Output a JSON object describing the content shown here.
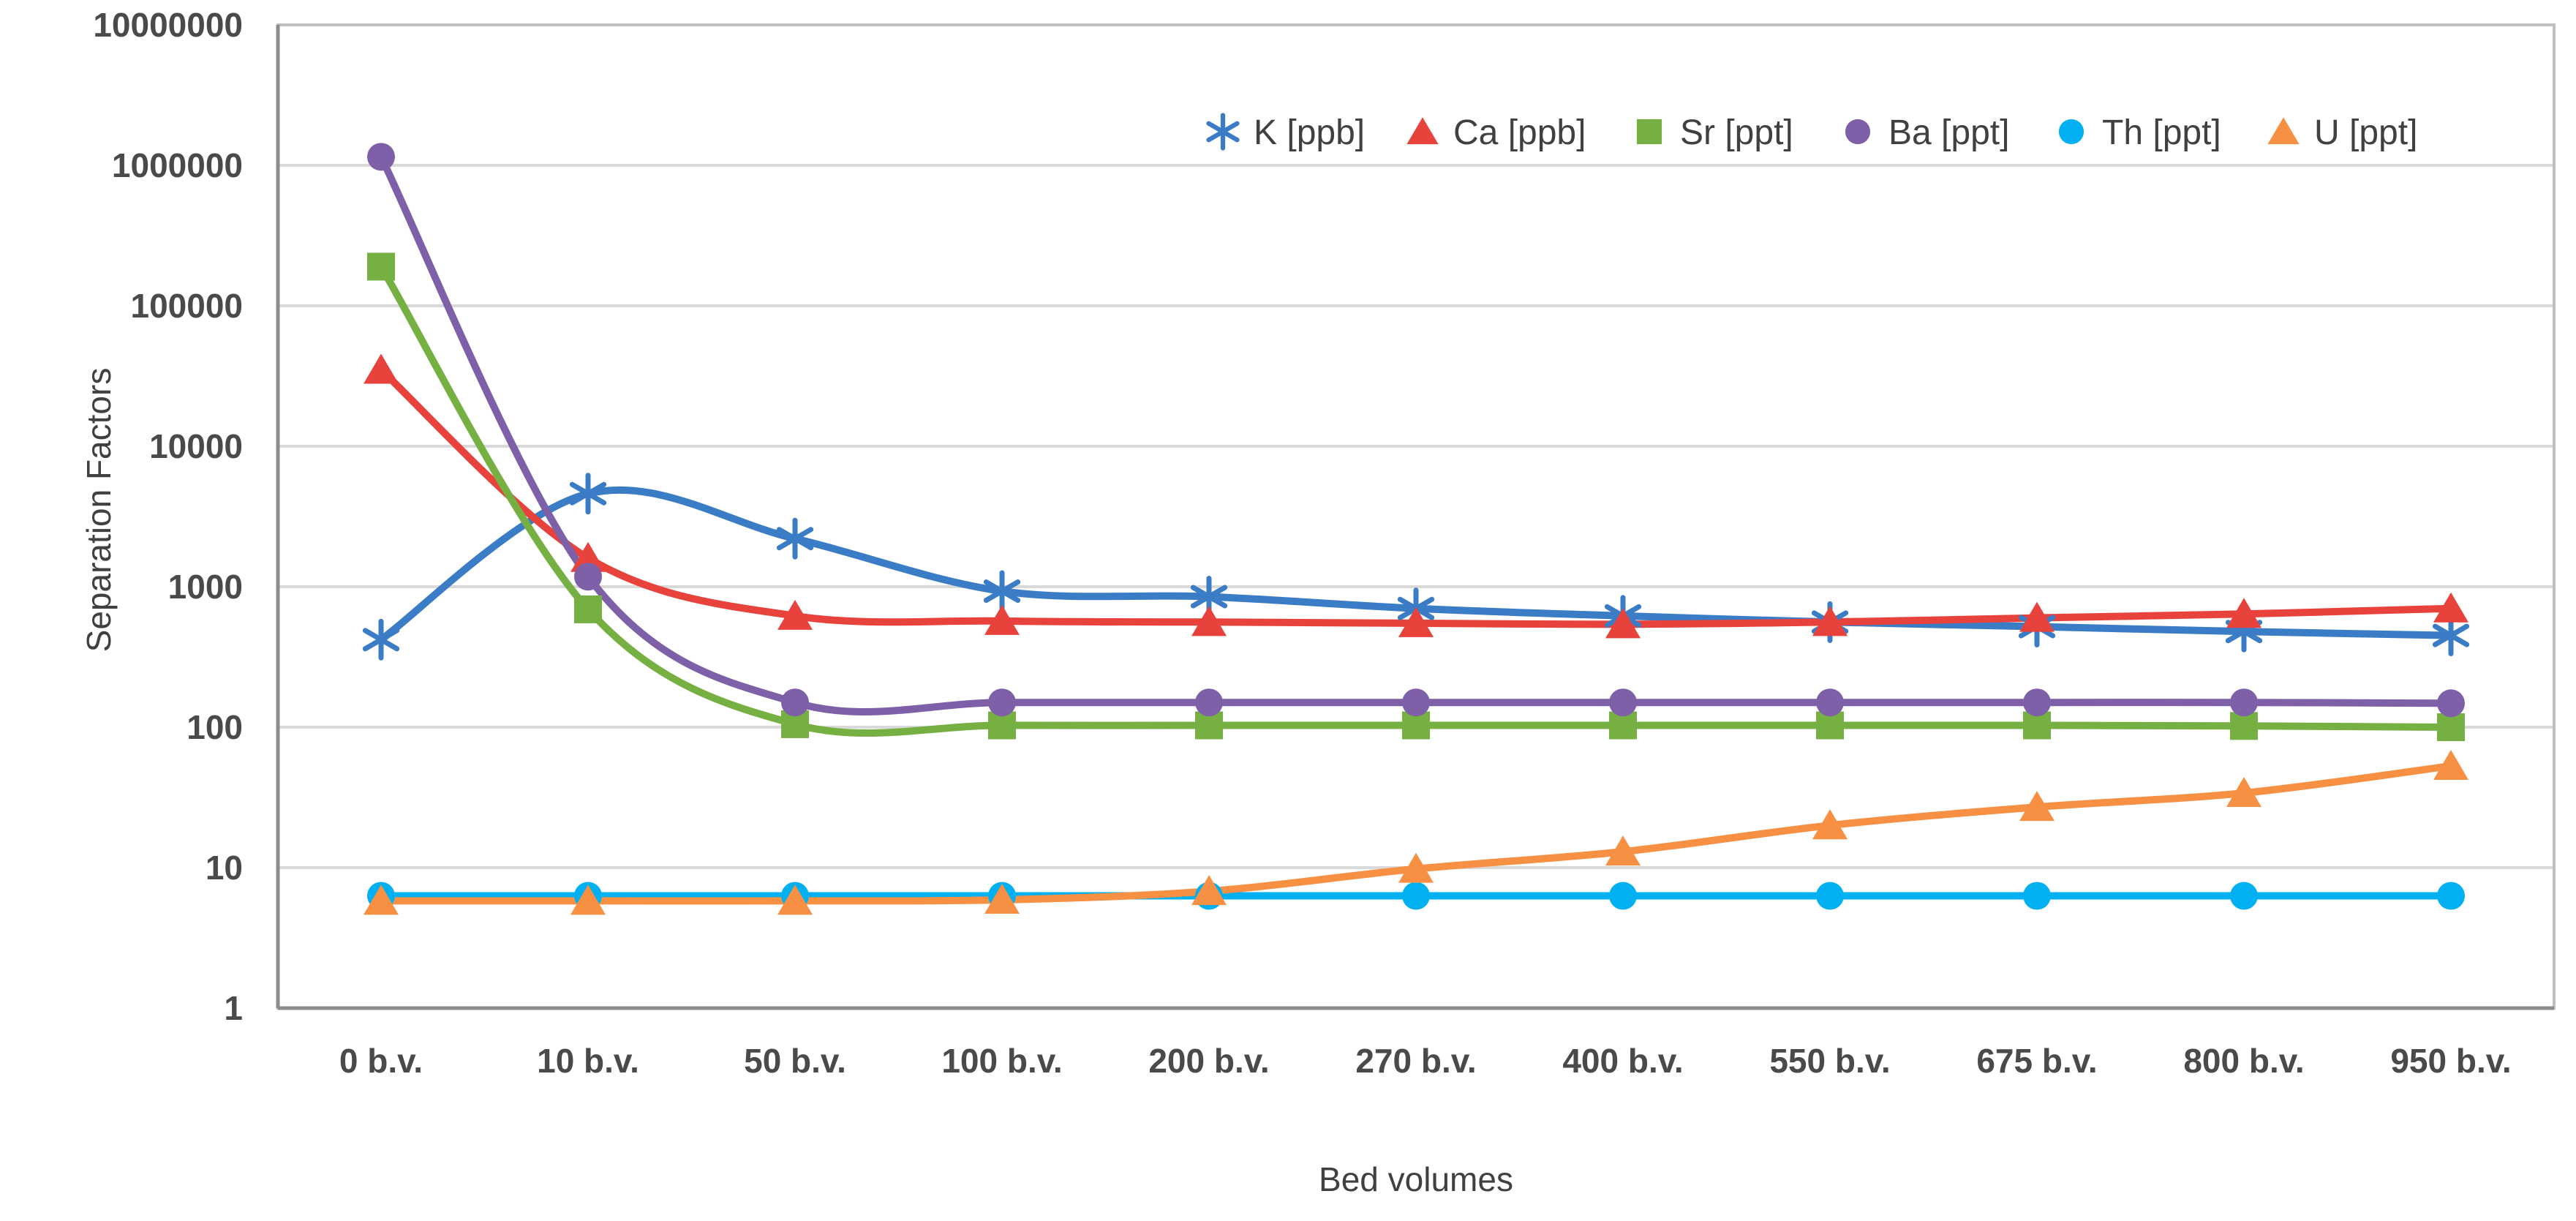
{
  "chart_data": {
    "type": "line",
    "title": "",
    "xlabel": "Bed volumes",
    "ylabel": "Separation Factors",
    "y_scale": "log",
    "ylim": [
      1,
      10000000
    ],
    "y_tick_labels": [
      "1",
      "10",
      "100",
      "1000",
      "10000",
      "100000",
      "1000000",
      "10000000"
    ],
    "grid": true,
    "legend_position": "top-right",
    "line_style": "smooth",
    "categories": [
      "0 b.v.",
      "10 b.v.",
      "50 b.v.",
      "100 b.v.",
      "200 b.v.",
      "270 b.v.",
      "400 b.v.",
      "550 b.v.",
      "675 b.v.",
      "800 b.v.",
      "950 b.v."
    ],
    "series": [
      {
        "name": "K [ppb]",
        "color": "#3a7cc6",
        "marker": "asterisk",
        "values": [
          420,
          4600,
          2200,
          930,
          850,
          700,
          620,
          560,
          520,
          480,
          450
        ]
      },
      {
        "name": "Ca [ppb]",
        "color": "#e8423c",
        "marker": "triangle",
        "values": [
          35000,
          1600,
          620,
          570,
          560,
          550,
          540,
          560,
          600,
          640,
          700
        ]
      },
      {
        "name": "Sr [ppt]",
        "color": "#76b043",
        "marker": "square",
        "values": [
          190000,
          690,
          105,
          103,
          103,
          103,
          103,
          103,
          103,
          102,
          100
        ]
      },
      {
        "name": "Ba [ppt]",
        "color": "#7d60a8",
        "marker": "circle",
        "values": [
          1150000,
          1180,
          150,
          150,
          150,
          150,
          150,
          150,
          150,
          150,
          148
        ]
      },
      {
        "name": "Th [ppt]",
        "color": "#00b0f0",
        "marker": "circle",
        "values": [
          6.3,
          6.3,
          6.3,
          6.3,
          6.3,
          6.3,
          6.3,
          6.3,
          6.3,
          6.3,
          6.3
        ]
      },
      {
        "name": "U [ppt]",
        "color": "#f79043",
        "marker": "triangle",
        "values": [
          5.8,
          5.8,
          5.8,
          5.9,
          6.8,
          9.8,
          13,
          20,
          27,
          34,
          53
        ]
      }
    ]
  }
}
